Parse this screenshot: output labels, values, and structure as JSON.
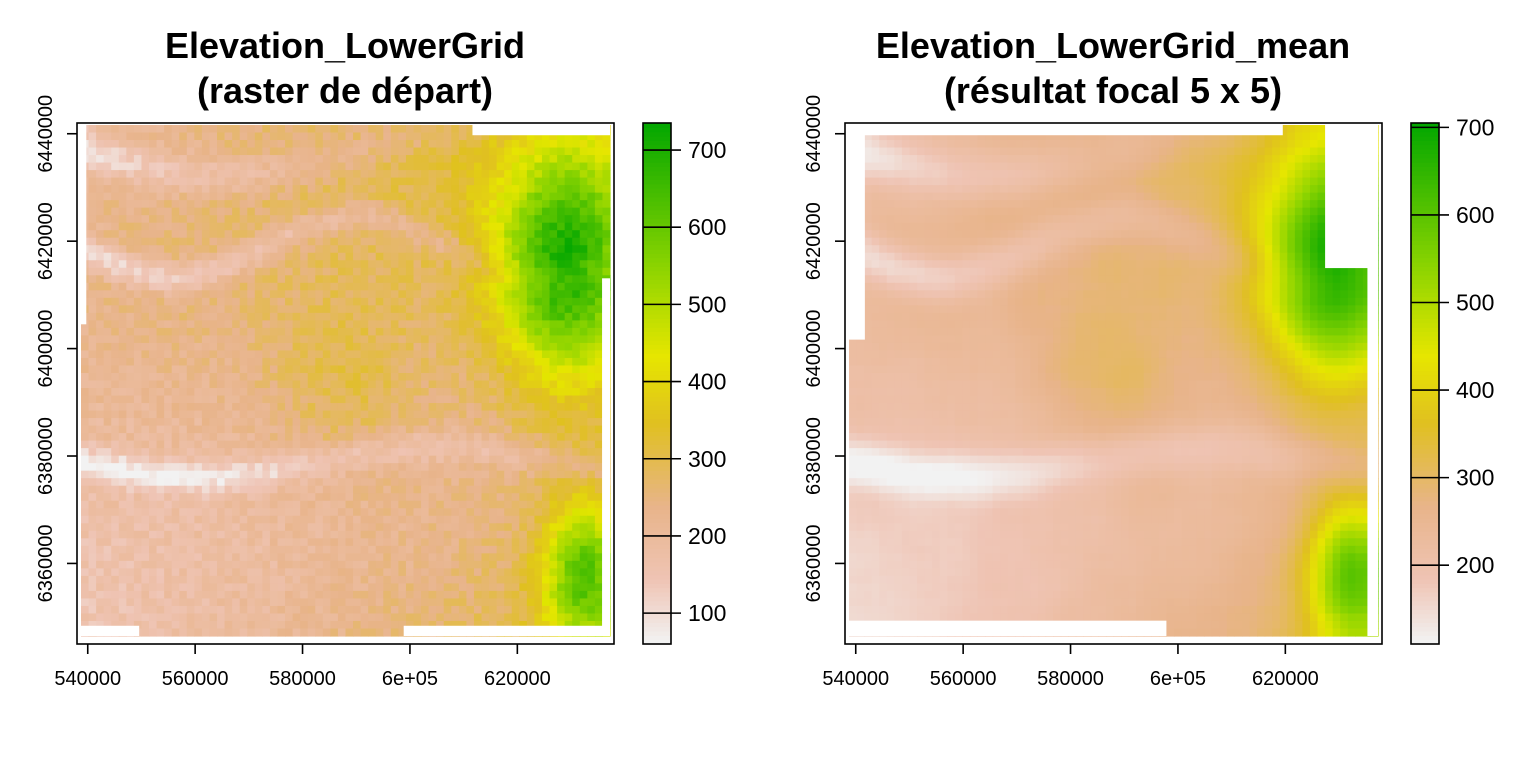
{
  "chart_data": [
    {
      "type": "heatmap",
      "title": "Elevation_LowerGrid",
      "subtitle": "(raster de départ)",
      "xlabel": "",
      "ylabel": "",
      "x_ticks": [
        540000,
        560000,
        580000,
        600000,
        620000
      ],
      "x_tick_labels": [
        "540000",
        "560000",
        "580000",
        "6e+05",
        "620000"
      ],
      "y_ticks": [
        6360000,
        6380000,
        6400000,
        6420000,
        6440000
      ],
      "y_tick_labels": [
        "6360000",
        "6380000",
        "6400000",
        "6420000",
        "6440000"
      ],
      "xlim": [
        538000,
        638000
      ],
      "ylim": [
        6345000,
        6442000
      ],
      "legend": {
        "position": "right",
        "range": [
          60,
          735
        ],
        "ticks": [
          100,
          200,
          300,
          400,
          500,
          600,
          700
        ],
        "tick_labels": [
          "100",
          "200",
          "300",
          "400",
          "500",
          "600",
          "700"
        ]
      },
      "value_range": [
        60,
        735
      ],
      "smoothing": "none"
    },
    {
      "type": "heatmap",
      "title": "Elevation_LowerGrid_mean",
      "subtitle": "(résultat focal 5 x 5)",
      "xlabel": "",
      "ylabel": "",
      "x_ticks": [
        540000,
        560000,
        580000,
        600000,
        620000
      ],
      "x_tick_labels": [
        "540000",
        "560000",
        "580000",
        "6e+05",
        "620000"
      ],
      "y_ticks": [
        6360000,
        6380000,
        6400000,
        6420000,
        6440000
      ],
      "y_tick_labels": [
        "6360000",
        "6380000",
        "6400000",
        "6420000",
        "6440000"
      ],
      "xlim": [
        538000,
        638000
      ],
      "ylim": [
        6345000,
        6442000
      ],
      "legend": {
        "position": "right",
        "range": [
          110,
          705
        ],
        "ticks": [
          200,
          300,
          400,
          500,
          600,
          700
        ],
        "tick_labels": [
          "200",
          "300",
          "400",
          "500",
          "600",
          "700"
        ]
      },
      "value_range": [
        110,
        705
      ],
      "smoothing": "focal 5x5 mean"
    }
  ],
  "colors": {
    "terrain_low": "#f2f2f2",
    "terrain_pink": "#efc4b4",
    "terrain_tan": "#e8b48a",
    "terrain_gold": "#e0c020",
    "terrain_yellow": "#e6e600",
    "terrain_lime": "#8cd400",
    "terrain_green": "#00a600",
    "axis": "#000000"
  }
}
